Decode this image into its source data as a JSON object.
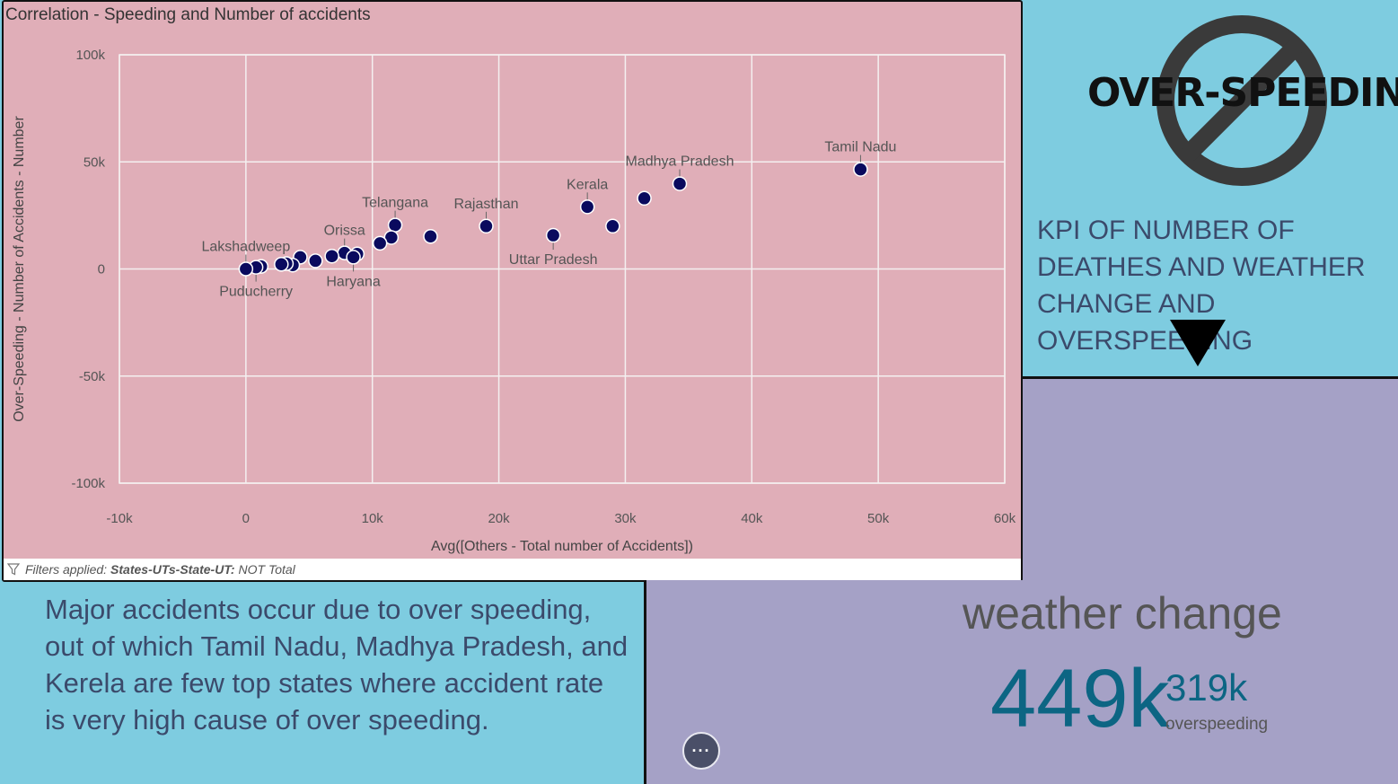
{
  "chart": {
    "title": "Correlation - Speeding and Number of accidents",
    "filter_prefix": "Filters applied:",
    "filter_field": "States-UTs-State-UT:",
    "filter_value": "NOT Total"
  },
  "chart_data": {
    "type": "scatter",
    "title": "Correlation - Speeding and Number of accidents",
    "xlabel": "Avg([Others - Total number of Accidents])",
    "ylabel": "Over-Speeding - Number of Accidents - Number",
    "xlim": [
      -10000,
      60000
    ],
    "ylim": [
      -100000,
      100000
    ],
    "x_ticks": [
      "-10k",
      "0",
      "10k",
      "20k",
      "30k",
      "40k",
      "50k",
      "60k"
    ],
    "y_ticks": [
      "100k",
      "50k",
      "0",
      "-50k",
      "-100k"
    ],
    "grid": true,
    "point_color": "#0a0a5e",
    "points": [
      {
        "x": 48600,
        "y": 46500,
        "label": "Tamil Nadu"
      },
      {
        "x": 34300,
        "y": 39800,
        "label": "Madhya Pradesh"
      },
      {
        "x": 31500,
        "y": 33000,
        "label": ""
      },
      {
        "x": 27000,
        "y": 29000,
        "label": "Kerala"
      },
      {
        "x": 29000,
        "y": 20000,
        "label": ""
      },
      {
        "x": 19000,
        "y": 20000,
        "label": "Rajasthan"
      },
      {
        "x": 24300,
        "y": 15700,
        "label": "Uttar Pradesh"
      },
      {
        "x": 14600,
        "y": 15200,
        "label": ""
      },
      {
        "x": 11800,
        "y": 20500,
        "label": "Telangana"
      },
      {
        "x": 11500,
        "y": 14700,
        "label": ""
      },
      {
        "x": 10600,
        "y": 12000,
        "label": ""
      },
      {
        "x": 7800,
        "y": 7500,
        "label": "Orissa"
      },
      {
        "x": 8800,
        "y": 7000,
        "label": ""
      },
      {
        "x": 8500,
        "y": 5500,
        "label": "Haryana"
      },
      {
        "x": 6800,
        "y": 6000,
        "label": ""
      },
      {
        "x": 5500,
        "y": 3800,
        "label": ""
      },
      {
        "x": 4300,
        "y": 5500,
        "label": ""
      },
      {
        "x": 3700,
        "y": 1800,
        "label": ""
      },
      {
        "x": 3200,
        "y": 2500,
        "label": ""
      },
      {
        "x": 2800,
        "y": 2200,
        "label": ""
      },
      {
        "x": 1200,
        "y": 1200,
        "label": ""
      },
      {
        "x": 800,
        "y": 800,
        "label": "Puducherry"
      },
      {
        "x": 0,
        "y": 0,
        "label": "Lakshadweep"
      }
    ]
  },
  "kpi_header": {
    "brand": "OVER-SPEEDING",
    "brand_icon": "no-entry-icon",
    "caption": "KPI OF NUMBER OF DEATHES AND WEATHER CHANGE AND OVERSPEEDING"
  },
  "kpi": {
    "label": "weather change",
    "main_value": "449k",
    "secondary_value": "319k",
    "secondary_label": "overspeeding",
    "more_label": "···"
  },
  "summary": {
    "text": "Major accidents occur due to over speeding, out of which Tamil Nadu, Madhya Pradesh, and Kerela are few top states where accident rate is very high cause of over speeding."
  }
}
